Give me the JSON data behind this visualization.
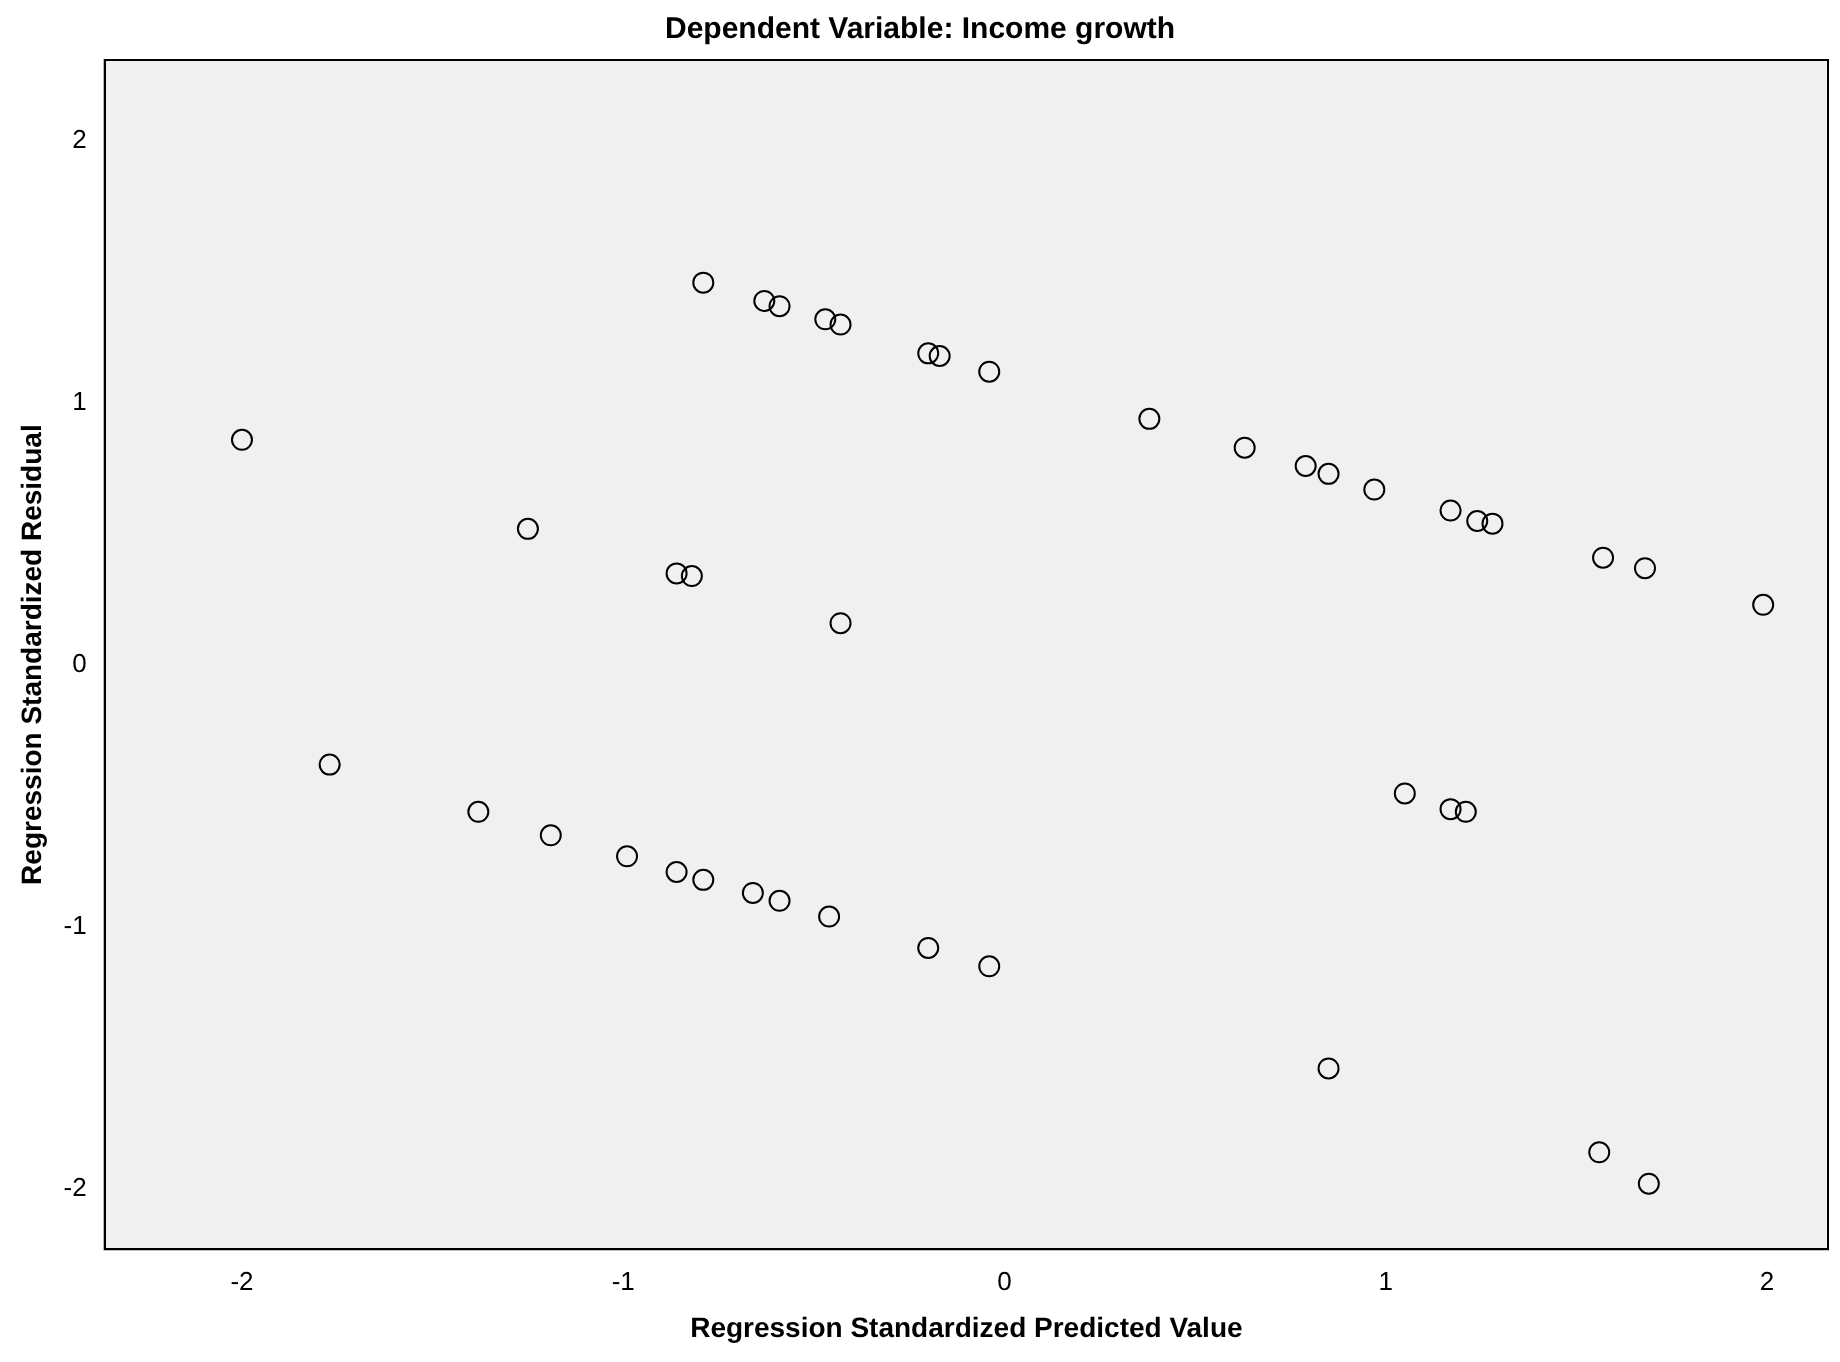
{
  "chart_data": {
    "type": "scatter",
    "title": "Dependent Variable: Income growth",
    "xlabel": "Regression Standardized Predicted Value",
    "ylabel": "Regression Standardized Residual",
    "x": [
      -2.0,
      -0.79,
      -0.63,
      -0.59,
      -0.47,
      -0.43,
      -0.2,
      -0.17,
      -0.04,
      0.38,
      0.63,
      0.79,
      0.85,
      0.97,
      1.17,
      1.24,
      1.28,
      1.57,
      1.68,
      1.99,
      -1.25,
      -0.86,
      -0.82,
      -0.43,
      -1.77,
      -1.38,
      -1.19,
      -0.99,
      -0.86,
      -0.79,
      -0.66,
      -0.59,
      -0.46,
      -0.2,
      -0.04,
      1.05,
      1.17,
      1.21,
      0.85,
      1.56,
      1.69
    ],
    "series": [
      {
        "color": "#000000",
        "values": [
          0.86,
          1.46,
          1.39,
          1.37,
          1.32,
          1.3,
          1.19,
          1.18,
          1.12,
          0.94,
          0.83,
          0.76,
          0.73,
          0.67,
          0.59,
          0.55,
          0.54,
          0.41,
          0.37,
          0.23,
          0.52,
          0.35,
          0.34,
          0.16,
          -0.38,
          -0.56,
          -0.65,
          -0.73,
          -0.79,
          -0.82,
          -0.87,
          -0.9,
          -0.96,
          -1.08,
          -1.15,
          -0.49,
          -0.55,
          -0.56,
          -1.54,
          -1.86,
          -1.98
        ]
      }
    ],
    "xlim": [
      -2.36,
      2.16
    ],
    "ylim": [
      -2.23,
      2.31
    ],
    "xticks": [
      -2,
      -1,
      0,
      1,
      2
    ],
    "yticks": [
      -2,
      -1,
      0,
      1,
      2
    ],
    "grid": false,
    "legend": false,
    "marker": "circle"
  }
}
